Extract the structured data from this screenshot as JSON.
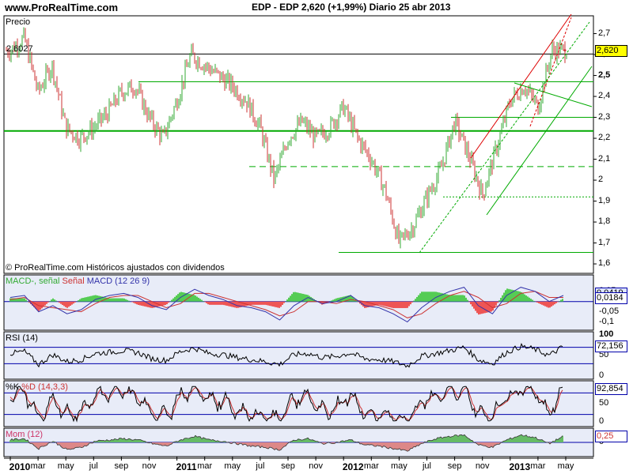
{
  "header": {
    "site": "www.ProRealTime.com",
    "title": "EDP - EDP    2,620 (+1,99%)    Diario  25 abr 2013"
  },
  "colors": {
    "up": "#33aa33",
    "down": "#cc3333",
    "panel_bg": "#e8ecf8",
    "grid_blue": "#0000aa",
    "support_green": "#00aa00",
    "trend_red": "#dd0000",
    "macd_line": "#3333aa",
    "macd_signal": "#cc3333",
    "macd_hist_pos": "#55cc55",
    "macd_hist_neg": "#ee5555"
  },
  "chart_data": [
    {
      "panel": "price",
      "type": "candlestick",
      "title": "Precio",
      "footer": "© ProRealTime.com Históricos ajustados con dividendos",
      "y_ticks": [
        "2,7",
        "2,6",
        "2,5",
        "2,4",
        "2,3",
        "2,2",
        "2,1",
        "2",
        "1,9",
        "1,8",
        "1,7",
        "1,6"
      ],
      "ylim": [
        1.57,
        2.77
      ],
      "last_value": "2,620",
      "marked_level": "2,6027",
      "x_tick_labels": [
        "2010",
        "mar",
        "may",
        "jul",
        "sep",
        "nov",
        "2011",
        "mar",
        "may",
        "jul",
        "sep",
        "nov",
        "2012",
        "mar",
        "may",
        "jul",
        "sep",
        "nov",
        "2013",
        "mar",
        "may"
      ],
      "x_tick_dates": [
        "2010-01",
        "2010-03",
        "2010-05",
        "2010-07",
        "2010-09",
        "2010-11",
        "2011-01",
        "2011-03",
        "2011-05",
        "2011-07",
        "2011-09",
        "2011-11",
        "2012-01",
        "2012-03",
        "2012-05",
        "2012-07",
        "2012-09",
        "2012-11",
        "2013-01",
        "2013-03",
        "2013-05"
      ],
      "series": [
        {
          "x": [
            "2010-01",
            "2010-02",
            "2010-03",
            "2010-04",
            "2010-05",
            "2010-06",
            "2010-07",
            "2010-08",
            "2010-09",
            "2010-10",
            "2010-11",
            "2010-12",
            "2011-01",
            "2011-02",
            "2011-03",
            "2011-04",
            "2011-05",
            "2011-06",
            "2011-07",
            "2011-08",
            "2011-09",
            "2011-10",
            "2011-11",
            "2011-12",
            "2012-01",
            "2012-02",
            "2012-03",
            "2012-04",
            "2012-05",
            "2012-06",
            "2012-07",
            "2012-08",
            "2012-09",
            "2012-10",
            "2012-11",
            "2012-12",
            "2013-01",
            "2013-02",
            "2013-03",
            "2013-04"
          ],
          "values": [
            2.62,
            2.68,
            2.42,
            2.55,
            2.25,
            2.2,
            2.25,
            2.32,
            2.42,
            2.45,
            2.3,
            2.2,
            2.38,
            2.6,
            2.55,
            2.5,
            2.45,
            2.38,
            2.25,
            2.0,
            2.2,
            2.28,
            2.2,
            2.25,
            2.35,
            2.2,
            2.1,
            1.95,
            1.7,
            1.78,
            1.92,
            2.05,
            2.28,
            2.12,
            1.93,
            2.15,
            2.38,
            2.45,
            2.35,
            2.62
          ]
        }
      ],
      "horizontal_levels": [
        {
          "value": 2.6027,
          "style": "solid",
          "color": "#000000"
        },
        {
          "value": 2.47,
          "style": "solid",
          "color": "#00aa00"
        },
        {
          "value": 2.3,
          "style": "solid",
          "color": "#00aa00"
        },
        {
          "value": 2.235,
          "style": "solid-thick",
          "color": "#00aa00"
        },
        {
          "value": 2.065,
          "style": "dashed",
          "color": "#00aa00"
        },
        {
          "value": 1.92,
          "style": "dotted",
          "color": "#00aa00"
        },
        {
          "value": 1.655,
          "style": "solid",
          "color": "#00aa00"
        }
      ]
    },
    {
      "panel": "macd",
      "type": "line",
      "title_parts": [
        "MACD-, señal",
        "Señal",
        "MACD (12 26 9)"
      ],
      "y_ticks": [
        "0,05",
        "0",
        "-0,05",
        "-0,1"
      ],
      "ylim": [
        -0.125,
        0.115
      ],
      "last_value": "0,0184",
      "extra_box": "0,0419",
      "series": [
        {
          "name": "MACD (12 26 9)",
          "values": [
            0.02,
            0.03,
            -0.05,
            -0.02,
            -0.06,
            -0.04,
            0.01,
            0.03,
            0.04,
            0.02,
            -0.02,
            -0.04,
            0.02,
            0.06,
            0.03,
            0.01,
            -0.02,
            -0.03,
            -0.05,
            -0.09,
            -0.02,
            0.02,
            -0.01,
            0.0,
            0.03,
            -0.02,
            -0.03,
            -0.06,
            -0.1,
            -0.03,
            0.02,
            0.05,
            0.07,
            -0.02,
            -0.06,
            0.03,
            0.07,
            0.05,
            0.0,
            0.03
          ]
        },
        {
          "name": "Señal",
          "values": [
            0.01,
            0.02,
            -0.02,
            -0.03,
            -0.04,
            -0.05,
            -0.01,
            0.02,
            0.03,
            0.03,
            0.0,
            -0.03,
            -0.01,
            0.04,
            0.04,
            0.02,
            0.0,
            -0.02,
            -0.04,
            -0.07,
            -0.05,
            0.0,
            0.0,
            -0.01,
            0.01,
            0.0,
            -0.02,
            -0.04,
            -0.08,
            -0.06,
            -0.01,
            0.03,
            0.05,
            0.02,
            -0.03,
            -0.01,
            0.04,
            0.05,
            0.02,
            0.02
          ]
        }
      ]
    },
    {
      "panel": "rsi",
      "type": "line",
      "title": "RSI (14)",
      "y_ticks": [
        "100",
        "50",
        "0"
      ],
      "ylim": [
        0,
        100
      ],
      "last_value": "72,156",
      "levels": [
        70,
        30
      ],
      "series": [
        {
          "name": "RSI (14)",
          "values": [
            55,
            60,
            28,
            52,
            35,
            40,
            55,
            58,
            62,
            57,
            42,
            38,
            60,
            68,
            55,
            52,
            45,
            40,
            35,
            28,
            52,
            55,
            45,
            48,
            56,
            42,
            40,
            35,
            25,
            48,
            55,
            62,
            70,
            40,
            30,
            58,
            72,
            65,
            50,
            72
          ]
        }
      ]
    },
    {
      "panel": "stochastic",
      "type": "line",
      "title_parts": [
        "%K",
        "%D (14,3,3)"
      ],
      "y_ticks": [
        "50",
        "0"
      ],
      "ylim": [
        -5,
        105
      ],
      "last_value": "92,854",
      "levels": [
        80,
        20
      ],
      "series": [
        {
          "name": "%K",
          "values": [
            75,
            85,
            10,
            60,
            15,
            30,
            70,
            80,
            85,
            70,
            20,
            15,
            75,
            90,
            60,
            55,
            30,
            25,
            15,
            5,
            60,
            70,
            25,
            40,
            75,
            20,
            20,
            15,
            5,
            55,
            70,
            85,
            90,
            20,
            10,
            70,
            90,
            80,
            20,
            93
          ]
        },
        {
          "name": "%D (14,3,3)",
          "values": [
            70,
            80,
            30,
            45,
            25,
            25,
            55,
            75,
            82,
            78,
            40,
            20,
            55,
            85,
            72,
            58,
            40,
            28,
            20,
            10,
            40,
            62,
            40,
            35,
            60,
            40,
            22,
            18,
            10,
            35,
            62,
            78,
            88,
            45,
            18,
            50,
            82,
            85,
            45,
            80
          ]
        }
      ]
    },
    {
      "panel": "momentum",
      "type": "area",
      "title": "Mom (12)",
      "y_ticks": [
        "0"
      ],
      "ylim": [
        -0.45,
        0.45
      ],
      "last_value": "0,25",
      "series": [
        {
          "name": "Mom (12)",
          "values": [
            0.1,
            0.15,
            -0.25,
            0.05,
            -0.3,
            -0.2,
            0.05,
            0.1,
            0.15,
            0.1,
            -0.05,
            -0.15,
            0.1,
            0.25,
            0.1,
            0.05,
            -0.05,
            -0.15,
            -0.2,
            -0.3,
            0.1,
            0.15,
            -0.05,
            0.0,
            0.1,
            -0.1,
            -0.15,
            -0.25,
            -0.35,
            -0.05,
            0.15,
            0.25,
            0.3,
            -0.1,
            -0.2,
            0.1,
            0.3,
            0.2,
            -0.05,
            0.25
          ]
        }
      ]
    }
  ]
}
